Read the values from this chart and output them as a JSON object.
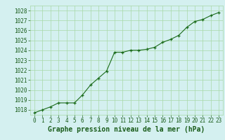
{
  "x": [
    0,
    1,
    2,
    3,
    4,
    5,
    6,
    7,
    8,
    9,
    10,
    11,
    12,
    13,
    14,
    15,
    16,
    17,
    18,
    19,
    20,
    21,
    22,
    23
  ],
  "y": [
    1017.7,
    1018.0,
    1018.3,
    1018.7,
    1018.7,
    1018.7,
    1019.5,
    1020.5,
    1021.2,
    1021.9,
    1023.8,
    1023.8,
    1024.0,
    1024.0,
    1024.1,
    1024.3,
    1024.8,
    1025.1,
    1025.5,
    1026.3,
    1026.9,
    1027.1,
    1027.5,
    1027.8
  ],
  "ylim": [
    1017.5,
    1028.5
  ],
  "yticks": [
    1018,
    1019,
    1020,
    1021,
    1022,
    1023,
    1024,
    1025,
    1026,
    1027,
    1028
  ],
  "xticks": [
    0,
    1,
    2,
    3,
    4,
    5,
    6,
    7,
    8,
    9,
    10,
    11,
    12,
    13,
    14,
    15,
    16,
    17,
    18,
    19,
    20,
    21,
    22,
    23
  ],
  "xlabel": "Graphe pression niveau de la mer (hPa)",
  "line_color": "#1a6b1a",
  "marker": "+",
  "marker_size": 3.5,
  "bg_color": "#d4f0f0",
  "grid_color": "#a8d8a8",
  "text_color": "#1a5c1a",
  "xlabel_fontsize": 7.0,
  "tick_fontsize": 5.5,
  "linewidth": 0.8
}
